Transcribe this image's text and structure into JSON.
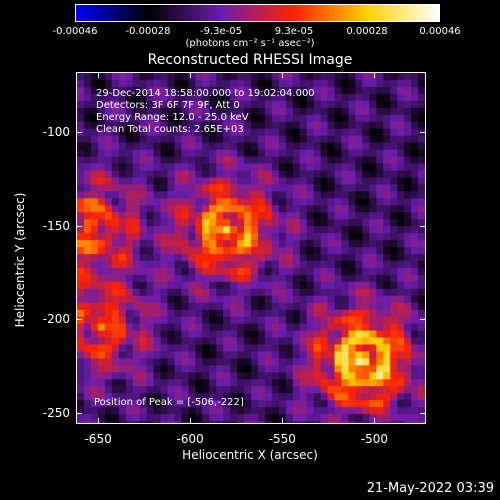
{
  "colorbar": {
    "ticks": [
      "-0.00046",
      "-0.00028",
      "-9.3e-05",
      "9.3e-05",
      "0.00028",
      "0.00046"
    ],
    "units": "(photons cm⁻² s⁻¹ asec⁻²)",
    "colors": [
      "#0000ff",
      "#000000",
      "#6a1dad",
      "#ff2200",
      "#ffd000",
      "#ffffff"
    ]
  },
  "annotations": {
    "line1": "29-Dec-2014 18:58:00.000 to 19:02:04.000",
    "line2": "Detectors: 3F 6F 7F 9F, Att 0",
    "line3": "Energy Range: 12.0 - 25.0 keV",
    "line4": "Clean     Total counts: 2.65E+03",
    "peak": "Position of Peak = [-506,-222]"
  },
  "timestamp": "21-May-2022 03:39",
  "chart_data": {
    "type": "heatmap",
    "title": "Reconstructed RHESSI Image",
    "xlabel": "Heliocentric X (arcsec)",
    "ylabel": "Heliocentric Y (arcsec)",
    "xlim": [
      -662,
      -472
    ],
    "ylim": [
      -256,
      -68
    ],
    "xticks": [
      "-650",
      "-600",
      "-550",
      "-500"
    ],
    "yticks": [
      "-100",
      "-150",
      "-200",
      "-250"
    ],
    "xtick_values": [
      -650,
      -600,
      -550,
      -500
    ],
    "ytick_values": [
      -100,
      -150,
      -200,
      -250
    ],
    "colorbar_range": [
      -0.00046,
      0.00046
    ],
    "sources": [
      {
        "x": -506,
        "y": -222,
        "intensity": 1.0,
        "label": "peak"
      },
      {
        "x": -580,
        "y": -152,
        "intensity": 0.8
      },
      {
        "x": -655,
        "y": -150,
        "intensity": 0.6
      },
      {
        "x": -650,
        "y": -205,
        "intensity": 0.55
      }
    ],
    "grid": false
  }
}
